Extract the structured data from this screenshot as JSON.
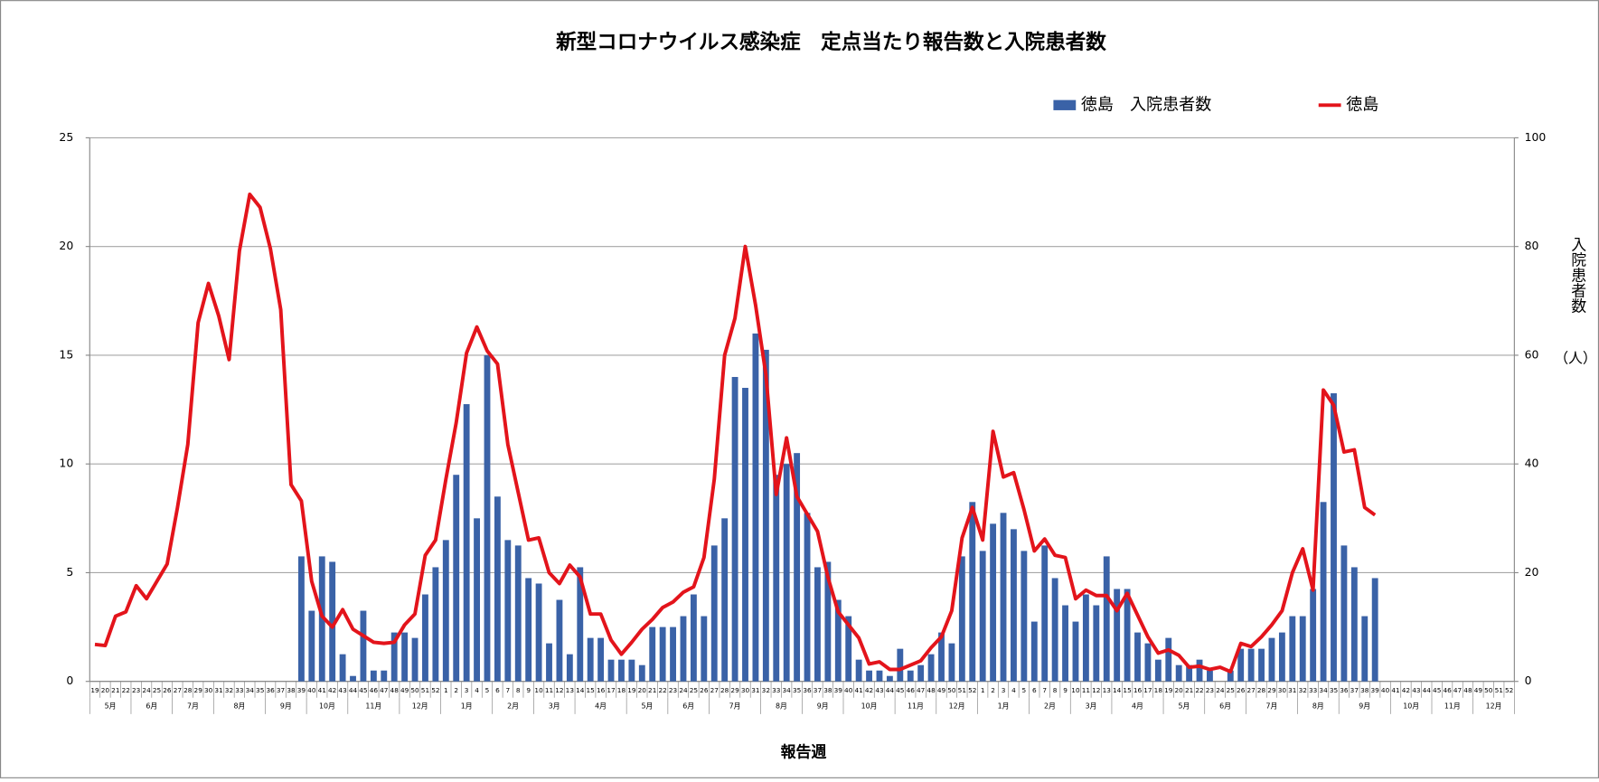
{
  "chart_data": {
    "type": "bar",
    "title": "新型コロナウイルス感染症　定点当たり報告数と入院患者数",
    "x_label": "報告週",
    "y2_label": "入院患者数",
    "y2_unit": "（人）",
    "categories": [
      "19",
      "20",
      "21",
      "22",
      "23",
      "24",
      "25",
      "26",
      "27",
      "28",
      "29",
      "30",
      "31",
      "32",
      "33",
      "34",
      "35",
      "36",
      "37",
      "38",
      "39",
      "40",
      "41",
      "42",
      "43",
      "44",
      "45",
      "46",
      "47",
      "48",
      "49",
      "50",
      "51",
      "52",
      "1",
      "2",
      "3",
      "4",
      "5",
      "6",
      "7",
      "8",
      "9",
      "10",
      "11",
      "12",
      "13",
      "14",
      "15",
      "16",
      "17",
      "18",
      "19",
      "20",
      "21",
      "22",
      "23",
      "24",
      "25",
      "26",
      "27",
      "28",
      "29",
      "30",
      "31",
      "32",
      "33",
      "34",
      "35",
      "36",
      "37",
      "38",
      "39",
      "40",
      "41",
      "42",
      "43",
      "44",
      "45",
      "46",
      "47",
      "48",
      "49",
      "50",
      "51",
      "52",
      "1",
      "2",
      "3",
      "4",
      "5",
      "6",
      "7",
      "8",
      "9",
      "10",
      "11",
      "12",
      "13",
      "14",
      "15",
      "16",
      "17",
      "18",
      "19",
      "20",
      "21",
      "22",
      "23",
      "24",
      "25",
      "26",
      "27",
      "28",
      "29",
      "30",
      "31",
      "32",
      "33",
      "34",
      "35",
      "36",
      "37",
      "38",
      "39",
      "40",
      "41",
      "42",
      "43",
      "44",
      "45",
      "46",
      "47",
      "48",
      "49",
      "50",
      "51",
      "52"
    ],
    "months": [
      "5月",
      "5月",
      "5月",
      "5月",
      "6月",
      "6月",
      "6月",
      "6月",
      "7月",
      "7月",
      "7月",
      "7月",
      "8月",
      "8月",
      "8月",
      "8月",
      "8月",
      "9月",
      "9月",
      "9月",
      "9月",
      "10月",
      "10月",
      "10月",
      "10月",
      "11月",
      "11月",
      "11月",
      "11月",
      "11月",
      "12月",
      "12月",
      "12月",
      "12月",
      "1月",
      "1月",
      "1月",
      "1月",
      "1月",
      "2月",
      "2月",
      "2月",
      "2月",
      "3月",
      "3月",
      "3月",
      "3月",
      "4月",
      "4月",
      "4月",
      "4月",
      "4月",
      "5月",
      "5月",
      "5月",
      "5月",
      "6月",
      "6月",
      "6月",
      "6月",
      "7月",
      "7月",
      "7月",
      "7月",
      "7月",
      "8月",
      "8月",
      "8月",
      "8月",
      "9月",
      "9月",
      "9月",
      "9月",
      "10月",
      "10月",
      "10月",
      "10月",
      "10月",
      "11月",
      "11月",
      "11月",
      "11月",
      "12月",
      "12月",
      "12月",
      "12月",
      "1月",
      "1月",
      "1月",
      "1月",
      "1月",
      "2月",
      "2月",
      "2月",
      "2月",
      "3月",
      "3月",
      "3月",
      "3月",
      "4月",
      "4月",
      "4月",
      "4月",
      "4月",
      "5月",
      "5月",
      "5月",
      "5月",
      "6月",
      "6月",
      "6月",
      "6月",
      "7月",
      "7月",
      "7月",
      "7月",
      "7月",
      "8月",
      "8月",
      "8月",
      "8月",
      "9月",
      "9月",
      "9月",
      "9月",
      "9月",
      "10月",
      "10月",
      "10月",
      "10月",
      "11月",
      "11月",
      "11月",
      "11月",
      "12月",
      "12月",
      "12月",
      "12月"
    ],
    "series": [
      {
        "name": "徳島　入院患者数",
        "type": "bar",
        "axis": "y2",
        "color": "#3a62a7",
        "values": [
          null,
          null,
          null,
          null,
          null,
          null,
          null,
          null,
          null,
          null,
          null,
          null,
          null,
          null,
          null,
          null,
          null,
          null,
          null,
          null,
          23,
          13,
          23,
          22,
          5,
          1,
          13,
          2,
          2,
          9,
          9,
          8,
          16,
          21,
          26,
          38,
          51,
          30,
          60,
          34,
          26,
          25,
          19,
          18,
          7,
          15,
          5,
          21,
          8,
          8,
          4,
          4,
          4,
          3,
          10,
          10,
          10,
          12,
          16,
          12,
          25,
          30,
          56,
          54,
          64,
          61,
          38,
          40,
          42,
          31,
          21,
          22,
          15,
          12,
          4,
          2,
          2,
          1,
          6,
          2,
          3,
          5,
          9,
          7,
          23,
          33,
          24,
          29,
          31,
          28,
          24,
          11,
          25,
          19,
          14,
          11,
          16,
          14,
          23,
          17,
          17,
          9,
          7,
          4,
          8,
          3,
          3,
          4,
          2,
          0,
          2,
          6,
          6,
          6,
          8,
          9,
          12,
          12,
          17,
          33,
          53,
          25,
          21,
          12,
          19,
          null,
          null,
          null,
          null,
          null,
          null,
          null,
          null,
          null,
          null,
          null,
          null,
          null
        ]
      },
      {
        "name": "徳島",
        "type": "line",
        "color": "#e3141b",
        "values": [
          1.7,
          1.65,
          3,
          3.2,
          4.4,
          3.8,
          4.6,
          5.4,
          8,
          10.9,
          16.5,
          18.3,
          16.8,
          14.8,
          19.8,
          22.4,
          21.8,
          19.9,
          17.1,
          9.05,
          8.3,
          4.6,
          3,
          2.5,
          3.3,
          2.4,
          2.1,
          1.8,
          1.75,
          1.8,
          2.6,
          3.1,
          5.8,
          6.5,
          9.3,
          11.9,
          15.1,
          16.3,
          15.2,
          14.6,
          10.9,
          8.7,
          6.5,
          6.6,
          5,
          4.5,
          5.35,
          4.8,
          3.1,
          3.1,
          1.9,
          1.25,
          1.8,
          2.4,
          2.85,
          3.4,
          3.65,
          4.1,
          4.35,
          5.7,
          9.3,
          15,
          16.7,
          20,
          17.3,
          14.1,
          8.6,
          11.2,
          8.5,
          7.7,
          6.9,
          4.8,
          3.2,
          2.6,
          2,
          0.8,
          0.9,
          0.55,
          0.55,
          0.75,
          0.95,
          1.55,
          2.05,
          3.25,
          6.6,
          8,
          6.5,
          11.5,
          9.4,
          9.6,
          7.9,
          6,
          6.55,
          5.8,
          5.7,
          3.8,
          4.2,
          3.95,
          3.95,
          3.25,
          4.05,
          3.05,
          2.05,
          1.3,
          1.45,
          1.2,
          0.65,
          0.7,
          0.55,
          0.65,
          0.45,
          1.75,
          1.6,
          2.05,
          2.6,
          3.25,
          5,
          6.1,
          4.2,
          13.4,
          12.7,
          10.55,
          10.65,
          8,
          7.65,
          null,
          null,
          null,
          null,
          null,
          null,
          null,
          null,
          null,
          null,
          null,
          null,
          null
        ]
      }
    ],
    "ylim": [
      0,
      25
    ],
    "yticks": [
      0,
      5,
      10,
      15,
      20,
      25
    ],
    "y2lim": [
      0,
      100
    ],
    "y2ticks": [
      0,
      20,
      40,
      60,
      80,
      100
    ],
    "grid": true
  }
}
